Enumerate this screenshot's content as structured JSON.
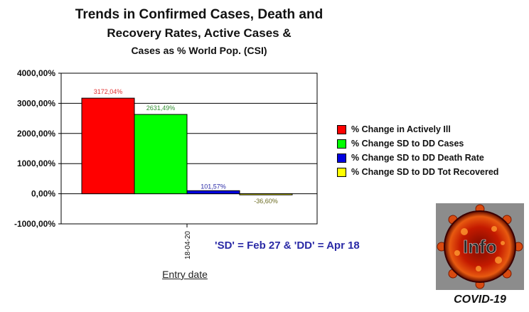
{
  "chart_data": {
    "type": "bar",
    "title_lines": [
      "Trends in Confirmed Cases, Death and",
      "Recovery Rates, Active Cases &",
      "Cases as % World Pop. (CSI)"
    ],
    "xlabel": "Entry date",
    "categories": [
      "18-04-20"
    ],
    "ylim": [
      -1000,
      4000
    ],
    "yticks": [
      4000,
      3000,
      2000,
      1000,
      0,
      -1000
    ],
    "ytick_labels": [
      "4000,00%",
      "3000,00%",
      "2000,00%",
      "1000,00%",
      "0,00%",
      "-1000,00%"
    ],
    "grid": true,
    "legend_position": "right",
    "series": [
      {
        "name": "% Change in Actively Ill",
        "values": [
          3172.04
        ],
        "label": "3172,04%",
        "color": "#ff0000",
        "label_color": "#e23030"
      },
      {
        "name": "% Change SD to DD Cases",
        "values": [
          2631.49
        ],
        "label": "2631,49%",
        "color": "#00ff00",
        "label_color": "#2f8f2f"
      },
      {
        "name": "% Change SD to DD Death Rate",
        "values": [
          101.57
        ],
        "label": "101,57%",
        "color": "#0000e0",
        "label_color": "#2a2aa6"
      },
      {
        "name": "% Change SD to DD Tot Recovered",
        "values": [
          -36.6
        ],
        "label": "-36,60%",
        "color": "#ffff00",
        "label_color": "#6a6a20"
      }
    ]
  },
  "note": "'SD' = Feb 27 & 'DD' = Apr 18",
  "logo": {
    "text": "Info",
    "caption": "COVID-19"
  }
}
